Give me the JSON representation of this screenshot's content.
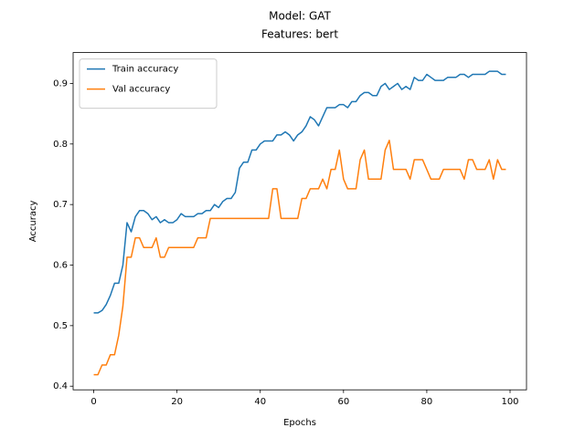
{
  "chart_data": {
    "type": "line",
    "title": "Model: GAT",
    "subtitle": "Features: bert",
    "x_label": "Epochs",
    "y_label": "Accuracy",
    "x": [
      0,
      1,
      2,
      3,
      4,
      5,
      6,
      7,
      8,
      9,
      10,
      11,
      12,
      13,
      14,
      15,
      16,
      17,
      18,
      19,
      20,
      21,
      22,
      23,
      24,
      25,
      26,
      27,
      28,
      29,
      30,
      31,
      32,
      33,
      34,
      35,
      36,
      37,
      38,
      39,
      40,
      41,
      42,
      43,
      44,
      45,
      46,
      47,
      48,
      49,
      50,
      51,
      52,
      53,
      54,
      55,
      56,
      57,
      58,
      59,
      60,
      61,
      62,
      63,
      64,
      65,
      66,
      67,
      68,
      69,
      70,
      71,
      72,
      73,
      74,
      75,
      76,
      77,
      78,
      79,
      80,
      81,
      82,
      83,
      84,
      85,
      86,
      87,
      88,
      89,
      90,
      91,
      92,
      93,
      94,
      95,
      96,
      97,
      98,
      99
    ],
    "series": [
      {
        "name": "Train accuracy",
        "color": "#1f77b4",
        "values": [
          0.521,
          0.521,
          0.525,
          0.535,
          0.55,
          0.57,
          0.57,
          0.6,
          0.67,
          0.655,
          0.68,
          0.69,
          0.69,
          0.685,
          0.675,
          0.68,
          0.67,
          0.675,
          0.67,
          0.67,
          0.675,
          0.685,
          0.68,
          0.68,
          0.68,
          0.685,
          0.685,
          0.69,
          0.69,
          0.7,
          0.695,
          0.705,
          0.71,
          0.71,
          0.72,
          0.76,
          0.77,
          0.77,
          0.79,
          0.79,
          0.8,
          0.805,
          0.805,
          0.805,
          0.815,
          0.815,
          0.82,
          0.815,
          0.805,
          0.815,
          0.82,
          0.83,
          0.845,
          0.84,
          0.83,
          0.845,
          0.86,
          0.86,
          0.86,
          0.865,
          0.865,
          0.86,
          0.87,
          0.87,
          0.88,
          0.885,
          0.885,
          0.88,
          0.88,
          0.895,
          0.9,
          0.89,
          0.895,
          0.9,
          0.89,
          0.895,
          0.89,
          0.91,
          0.905,
          0.905,
          0.915,
          0.91,
          0.905,
          0.905,
          0.905,
          0.91,
          0.91,
          0.91,
          0.915,
          0.915,
          0.91,
          0.915,
          0.915,
          0.915,
          0.915,
          0.92,
          0.92,
          0.92,
          0.915,
          0.915
        ]
      },
      {
        "name": "Val accuracy",
        "color": "#ff7f0e",
        "values": [
          0.419,
          0.419,
          0.435,
          0.435,
          0.452,
          0.452,
          0.484,
          0.532,
          0.613,
          0.613,
          0.645,
          0.645,
          0.629,
          0.629,
          0.629,
          0.645,
          0.613,
          0.613,
          0.629,
          0.629,
          0.629,
          0.629,
          0.629,
          0.629,
          0.629,
          0.645,
          0.645,
          0.645,
          0.677,
          0.677,
          0.677,
          0.677,
          0.677,
          0.677,
          0.677,
          0.677,
          0.677,
          0.677,
          0.677,
          0.677,
          0.677,
          0.677,
          0.677,
          0.726,
          0.726,
          0.677,
          0.677,
          0.677,
          0.677,
          0.677,
          0.71,
          0.71,
          0.726,
          0.726,
          0.726,
          0.742,
          0.726,
          0.758,
          0.758,
          0.79,
          0.742,
          0.726,
          0.726,
          0.726,
          0.774,
          0.79,
          0.742,
          0.742,
          0.742,
          0.742,
          0.79,
          0.806,
          0.758,
          0.758,
          0.758,
          0.758,
          0.742,
          0.774,
          0.774,
          0.774,
          0.758,
          0.742,
          0.742,
          0.742,
          0.758,
          0.758,
          0.758,
          0.758,
          0.758,
          0.742,
          0.774,
          0.774,
          0.758,
          0.758,
          0.758,
          0.774,
          0.742,
          0.774,
          0.758,
          0.758
        ]
      }
    ],
    "xlim": [
      -4.95,
      103.95
    ],
    "ylim": [
      0.394,
      0.951
    ],
    "xticks": [
      0,
      20,
      40,
      60,
      80,
      100
    ],
    "yticks": [
      0.4,
      0.5,
      0.6,
      0.7,
      0.8,
      0.9
    ],
    "grid": false,
    "legend": "upper-left"
  }
}
